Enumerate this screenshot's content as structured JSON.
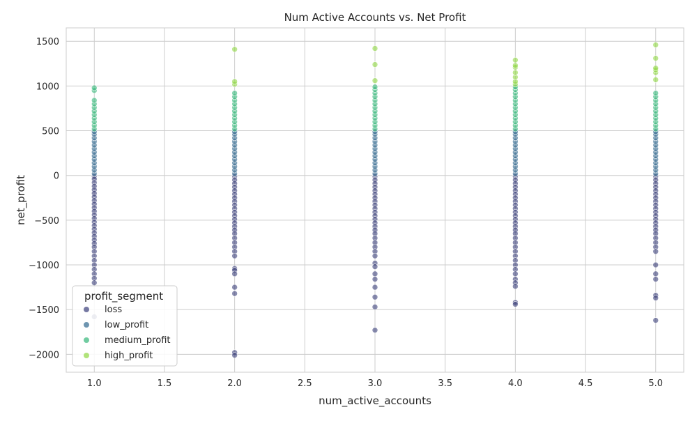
{
  "chart_data": {
    "type": "scatter",
    "title": "Num Active Accounts vs. Net Profit",
    "xlabel": "num_active_accounts",
    "ylabel": "net_profit",
    "xlim": [
      0.8,
      5.2
    ],
    "ylim": [
      -2200,
      1650
    ],
    "xticks": [
      1.0,
      1.5,
      2.0,
      2.5,
      3.0,
      3.5,
      4.0,
      4.5,
      5.0
    ],
    "xtick_labels": [
      "1.0",
      "1.5",
      "2.0",
      "2.5",
      "3.0",
      "3.5",
      "4.0",
      "4.5",
      "5.0"
    ],
    "yticks": [
      -2000,
      -1500,
      -1000,
      -500,
      0,
      500,
      1000,
      1500
    ],
    "ytick_labels": [
      "−2000",
      "−1500",
      "−1000",
      "−500",
      "0",
      "500",
      "1000",
      "1500"
    ],
    "grid": true,
    "legend": {
      "title": "profit_segment",
      "placement": "lower-left"
    },
    "series": [
      {
        "name": "loss",
        "color": "#3b3f7a",
        "points": [
          [
            1,
            -10
          ],
          [
            1,
            -40
          ],
          [
            1,
            -80
          ],
          [
            1,
            -120
          ],
          [
            1,
            -160
          ],
          [
            1,
            -200
          ],
          [
            1,
            -240
          ],
          [
            1,
            -280
          ],
          [
            1,
            -320
          ],
          [
            1,
            -360
          ],
          [
            1,
            -400
          ],
          [
            1,
            -440
          ],
          [
            1,
            -480
          ],
          [
            1,
            -520
          ],
          [
            1,
            -560
          ],
          [
            1,
            -600
          ],
          [
            1,
            -640
          ],
          [
            1,
            -680
          ],
          [
            1,
            -720
          ],
          [
            1,
            -760
          ],
          [
            1,
            -800
          ],
          [
            1,
            -850
          ],
          [
            1,
            -900
          ],
          [
            1,
            -950
          ],
          [
            1,
            -1000
          ],
          [
            1,
            -1050
          ],
          [
            1,
            -1100
          ],
          [
            1,
            -1150
          ],
          [
            1,
            -1200
          ],
          [
            1,
            -1580
          ],
          [
            2,
            -10
          ],
          [
            2,
            -50
          ],
          [
            2,
            -90
          ],
          [
            2,
            -130
          ],
          [
            2,
            -170
          ],
          [
            2,
            -210
          ],
          [
            2,
            -250
          ],
          [
            2,
            -290
          ],
          [
            2,
            -330
          ],
          [
            2,
            -370
          ],
          [
            2,
            -410
          ],
          [
            2,
            -450
          ],
          [
            2,
            -490
          ],
          [
            2,
            -530
          ],
          [
            2,
            -570
          ],
          [
            2,
            -610
          ],
          [
            2,
            -650
          ],
          [
            2,
            -700
          ],
          [
            2,
            -750
          ],
          [
            2,
            -800
          ],
          [
            2,
            -850
          ],
          [
            2,
            -900
          ],
          [
            2,
            -1040
          ],
          [
            2,
            -1060
          ],
          [
            2,
            -1100
          ],
          [
            2,
            -1250
          ],
          [
            2,
            -1320
          ],
          [
            2,
            -1980
          ],
          [
            2,
            -2010
          ],
          [
            3,
            -10
          ],
          [
            3,
            -50
          ],
          [
            3,
            -90
          ],
          [
            3,
            -130
          ],
          [
            3,
            -170
          ],
          [
            3,
            -210
          ],
          [
            3,
            -250
          ],
          [
            3,
            -290
          ],
          [
            3,
            -330
          ],
          [
            3,
            -370
          ],
          [
            3,
            -410
          ],
          [
            3,
            -450
          ],
          [
            3,
            -490
          ],
          [
            3,
            -530
          ],
          [
            3,
            -570
          ],
          [
            3,
            -610
          ],
          [
            3,
            -650
          ],
          [
            3,
            -700
          ],
          [
            3,
            -750
          ],
          [
            3,
            -800
          ],
          [
            3,
            -850
          ],
          [
            3,
            -900
          ],
          [
            3,
            -980
          ],
          [
            3,
            -1020
          ],
          [
            3,
            -1100
          ],
          [
            3,
            -1160
          ],
          [
            3,
            -1250
          ],
          [
            3,
            -1360
          ],
          [
            3,
            -1470
          ],
          [
            3,
            -1730
          ],
          [
            4,
            -10
          ],
          [
            4,
            -50
          ],
          [
            4,
            -90
          ],
          [
            4,
            -130
          ],
          [
            4,
            -170
          ],
          [
            4,
            -210
          ],
          [
            4,
            -250
          ],
          [
            4,
            -290
          ],
          [
            4,
            -330
          ],
          [
            4,
            -370
          ],
          [
            4,
            -410
          ],
          [
            4,
            -450
          ],
          [
            4,
            -490
          ],
          [
            4,
            -530
          ],
          [
            4,
            -570
          ],
          [
            4,
            -610
          ],
          [
            4,
            -650
          ],
          [
            4,
            -700
          ],
          [
            4,
            -750
          ],
          [
            4,
            -800
          ],
          [
            4,
            -850
          ],
          [
            4,
            -900
          ],
          [
            4,
            -950
          ],
          [
            4,
            -1000
          ],
          [
            4,
            -1050
          ],
          [
            4,
            -1100
          ],
          [
            4,
            -1160
          ],
          [
            4,
            -1200
          ],
          [
            4,
            -1240
          ],
          [
            4,
            -1420
          ],
          [
            4,
            -1440
          ],
          [
            5,
            -10
          ],
          [
            5,
            -50
          ],
          [
            5,
            -90
          ],
          [
            5,
            -130
          ],
          [
            5,
            -170
          ],
          [
            5,
            -210
          ],
          [
            5,
            -250
          ],
          [
            5,
            -290
          ],
          [
            5,
            -330
          ],
          [
            5,
            -370
          ],
          [
            5,
            -410
          ],
          [
            5,
            -450
          ],
          [
            5,
            -490
          ],
          [
            5,
            -530
          ],
          [
            5,
            -570
          ],
          [
            5,
            -610
          ],
          [
            5,
            -650
          ],
          [
            5,
            -700
          ],
          [
            5,
            -750
          ],
          [
            5,
            -800
          ],
          [
            5,
            -850
          ],
          [
            5,
            -1000
          ],
          [
            5,
            -1100
          ],
          [
            5,
            -1160
          ],
          [
            5,
            -1340
          ],
          [
            5,
            -1370
          ],
          [
            5,
            -1620
          ]
        ]
      },
      {
        "name": "low_profit",
        "color": "#31688e",
        "points": [
          [
            1,
            20
          ],
          [
            1,
            60
          ],
          [
            1,
            100
          ],
          [
            1,
            140
          ],
          [
            1,
            180
          ],
          [
            1,
            220
          ],
          [
            1,
            260
          ],
          [
            1,
            300
          ],
          [
            1,
            340
          ],
          [
            1,
            380
          ],
          [
            1,
            420
          ],
          [
            1,
            460
          ],
          [
            1,
            490
          ],
          [
            2,
            20
          ],
          [
            2,
            60
          ],
          [
            2,
            100
          ],
          [
            2,
            140
          ],
          [
            2,
            180
          ],
          [
            2,
            220
          ],
          [
            2,
            260
          ],
          [
            2,
            300
          ],
          [
            2,
            340
          ],
          [
            2,
            380
          ],
          [
            2,
            420
          ],
          [
            2,
            460
          ],
          [
            2,
            490
          ],
          [
            3,
            20
          ],
          [
            3,
            60
          ],
          [
            3,
            100
          ],
          [
            3,
            140
          ],
          [
            3,
            180
          ],
          [
            3,
            220
          ],
          [
            3,
            260
          ],
          [
            3,
            300
          ],
          [
            3,
            340
          ],
          [
            3,
            380
          ],
          [
            3,
            420
          ],
          [
            3,
            460
          ],
          [
            3,
            490
          ],
          [
            4,
            20
          ],
          [
            4,
            60
          ],
          [
            4,
            100
          ],
          [
            4,
            140
          ],
          [
            4,
            180
          ],
          [
            4,
            220
          ],
          [
            4,
            260
          ],
          [
            4,
            300
          ],
          [
            4,
            340
          ],
          [
            4,
            380
          ],
          [
            4,
            420
          ],
          [
            4,
            460
          ],
          [
            4,
            490
          ],
          [
            5,
            20
          ],
          [
            5,
            60
          ],
          [
            5,
            100
          ],
          [
            5,
            140
          ],
          [
            5,
            180
          ],
          [
            5,
            220
          ],
          [
            5,
            260
          ],
          [
            5,
            300
          ],
          [
            5,
            340
          ],
          [
            5,
            380
          ],
          [
            5,
            420
          ],
          [
            5,
            460
          ],
          [
            5,
            490
          ]
        ]
      },
      {
        "name": "medium_profit",
        "color": "#35b779",
        "points": [
          [
            1,
            520
          ],
          [
            1,
            560
          ],
          [
            1,
            600
          ],
          [
            1,
            640
          ],
          [
            1,
            680
          ],
          [
            1,
            720
          ],
          [
            1,
            760
          ],
          [
            1,
            800
          ],
          [
            1,
            840
          ],
          [
            1,
            950
          ],
          [
            1,
            980
          ],
          [
            2,
            520
          ],
          [
            2,
            560
          ],
          [
            2,
            600
          ],
          [
            2,
            640
          ],
          [
            2,
            680
          ],
          [
            2,
            720
          ],
          [
            2,
            760
          ],
          [
            2,
            800
          ],
          [
            2,
            840
          ],
          [
            2,
            880
          ],
          [
            2,
            920
          ],
          [
            3,
            520
          ],
          [
            3,
            560
          ],
          [
            3,
            600
          ],
          [
            3,
            640
          ],
          [
            3,
            680
          ],
          [
            3,
            720
          ],
          [
            3,
            760
          ],
          [
            3,
            800
          ],
          [
            3,
            840
          ],
          [
            3,
            880
          ],
          [
            3,
            920
          ],
          [
            3,
            960
          ],
          [
            3,
            990
          ],
          [
            4,
            520
          ],
          [
            4,
            560
          ],
          [
            4,
            600
          ],
          [
            4,
            640
          ],
          [
            4,
            680
          ],
          [
            4,
            720
          ],
          [
            4,
            760
          ],
          [
            4,
            800
          ],
          [
            4,
            840
          ],
          [
            4,
            880
          ],
          [
            4,
            920
          ],
          [
            4,
            960
          ],
          [
            4,
            990
          ],
          [
            5,
            520
          ],
          [
            5,
            560
          ],
          [
            5,
            600
          ],
          [
            5,
            640
          ],
          [
            5,
            680
          ],
          [
            5,
            720
          ],
          [
            5,
            760
          ],
          [
            5,
            800
          ],
          [
            5,
            840
          ],
          [
            5,
            880
          ],
          [
            5,
            920
          ]
        ]
      },
      {
        "name": "high_profit",
        "color": "#90d743",
        "points": [
          [
            2,
            1020
          ],
          [
            2,
            1050
          ],
          [
            2,
            1410
          ],
          [
            3,
            1060
          ],
          [
            3,
            1240
          ],
          [
            3,
            1420
          ],
          [
            4,
            1020
          ],
          [
            4,
            1050
          ],
          [
            4,
            1100
          ],
          [
            4,
            1150
          ],
          [
            4,
            1210
          ],
          [
            4,
            1230
          ],
          [
            4,
            1290
          ],
          [
            5,
            1070
          ],
          [
            5,
            1150
          ],
          [
            5,
            1180
          ],
          [
            5,
            1200
          ],
          [
            5,
            1310
          ],
          [
            5,
            1460
          ]
        ]
      }
    ]
  }
}
